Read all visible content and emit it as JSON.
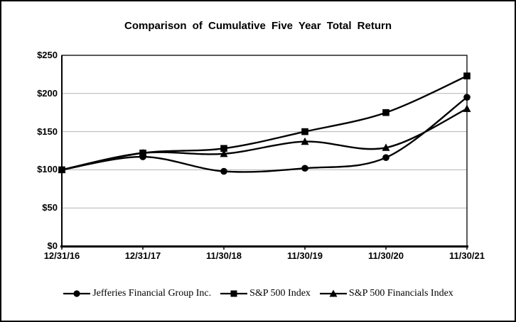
{
  "colors": {
    "line": "#000000",
    "grid": "#b3b3b3",
    "background": "#ffffff",
    "border": "#000000"
  },
  "y_axis": {
    "ticks": [
      0,
      50,
      100,
      150,
      200,
      250
    ],
    "tick_labels": [
      "$0",
      "$50",
      "$100",
      "$150",
      "$200",
      "$250"
    ]
  },
  "chart_data": {
    "type": "line",
    "title": "Comparison of Cumulative Five Year Total Return",
    "categories": [
      "12/31/16",
      "12/31/17",
      "11/30/18",
      "11/30/19",
      "11/30/20",
      "11/30/21"
    ],
    "series": [
      {
        "name": "Jefferies Financial Group Inc.",
        "marker": "circle",
        "values": [
          100,
          117,
          98,
          102,
          116,
          195
        ]
      },
      {
        "name": "S&P 500 Index",
        "marker": "square",
        "values": [
          100,
          122,
          128,
          150,
          175,
          223
        ]
      },
      {
        "name": "S&P 500 Financials Index",
        "marker": "triangle",
        "values": [
          100,
          122,
          121,
          137,
          129,
          180
        ]
      }
    ],
    "xlabel": "",
    "ylabel": "",
    "ylim": [
      0,
      250
    ],
    "grid": true,
    "legend_position": "bottom"
  }
}
